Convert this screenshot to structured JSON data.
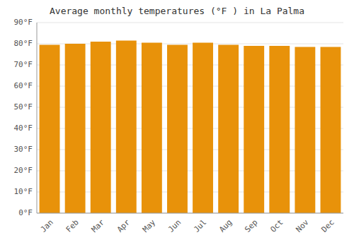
{
  "chart_data": {
    "type": "bar",
    "title": "Average monthly temperatures (°F ) in La Palma",
    "categories": [
      "Jan",
      "Feb",
      "Mar",
      "Apr",
      "May",
      "Jun",
      "Jul",
      "Aug",
      "Sep",
      "Oct",
      "Nov",
      "Dec"
    ],
    "values": [
      79.5,
      80.0,
      81.0,
      81.5,
      80.5,
      79.5,
      80.5,
      79.5,
      79.0,
      79.0,
      78.5,
      78.5
    ],
    "color": "#E8920A",
    "ylim": [
      0,
      90
    ],
    "yticks": [
      {
        "value": 0,
        "label": "0°F"
      },
      {
        "value": 10,
        "label": "10°F"
      },
      {
        "value": 20,
        "label": "20°F"
      },
      {
        "value": 30,
        "label": "30°F"
      },
      {
        "value": 40,
        "label": "40°F"
      },
      {
        "value": 50,
        "label": "50°F"
      },
      {
        "value": 60,
        "label": "60°F"
      },
      {
        "value": 70,
        "label": "70°F"
      },
      {
        "value": 80,
        "label": "80°F"
      },
      {
        "value": 90,
        "label": "90°F"
      }
    ],
    "grid": true
  }
}
